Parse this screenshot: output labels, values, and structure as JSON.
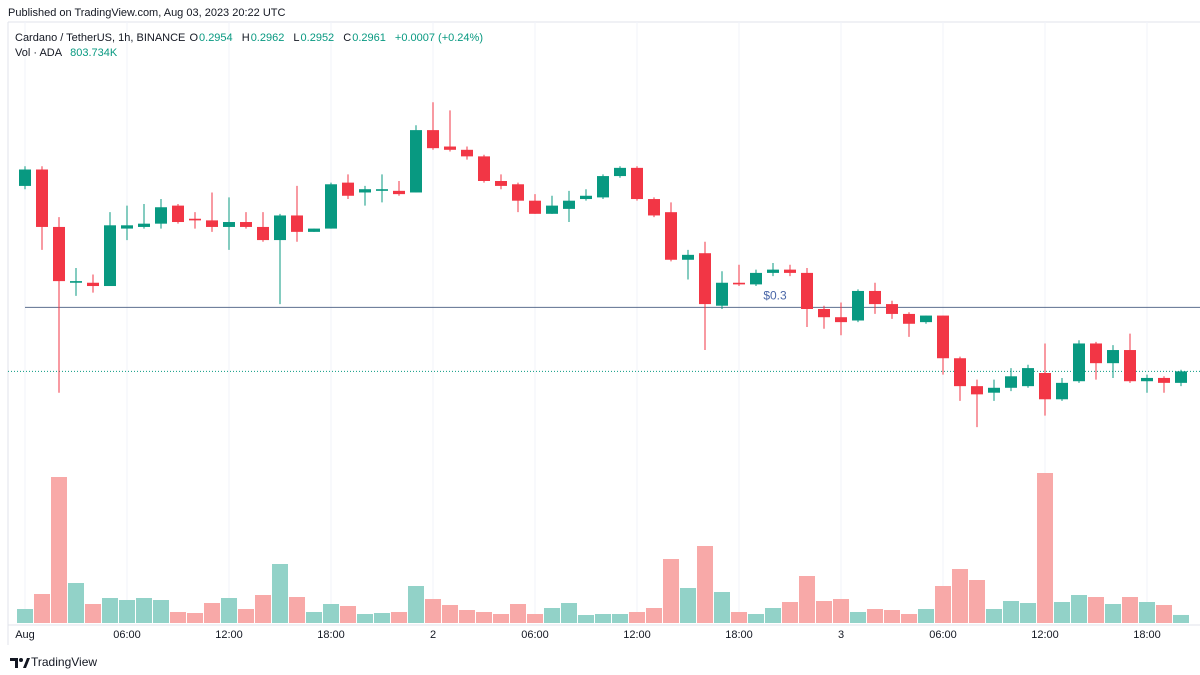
{
  "published": "Published on TradingView.com, Aug 03, 2023 20:22 UTC",
  "footer": "TradingView",
  "chart_data": {
    "type": "candlestick",
    "title": "Cardano / TetherUS, 1h, BINANCE",
    "ohlc_letters": [
      "O",
      "H",
      "L",
      "C"
    ],
    "change": "+0.0007 (+0.24%)",
    "up_color": "#089981",
    "down_color": "#f23645",
    "categories": [
      "Aug",
      null,
      null,
      null,
      null,
      null,
      "06:00",
      null,
      null,
      null,
      null,
      null,
      "12:00",
      null,
      null,
      null,
      null,
      null,
      "18:00",
      null,
      null,
      null,
      null,
      null,
      "2",
      null,
      null,
      null,
      null,
      null,
      "06:00",
      null,
      null,
      null,
      null,
      null,
      "12:00",
      null,
      null,
      null,
      null,
      null,
      "18:00",
      null,
      null,
      null,
      null,
      null,
      "3",
      null,
      null,
      null,
      null,
      null,
      "06:00",
      null,
      null,
      null,
      null,
      null,
      "12:00",
      null,
      null,
      null,
      null,
      null,
      "18:00",
      null,
      null
    ],
    "open": [
      0.3074,
      0.3084,
      0.3049,
      0.3015,
      0.3015,
      0.3013,
      0.3048,
      0.3049,
      0.3051,
      0.3062,
      0.3054,
      0.3053,
      0.3049,
      0.3052,
      0.3049,
      0.3041,
      0.3056,
      0.3046,
      0.3048,
      0.3076,
      0.307,
      0.3071,
      0.3071,
      0.307,
      0.3108,
      0.3098,
      0.3096,
      0.3092,
      0.3077,
      0.3075,
      0.3065,
      0.3057,
      0.306,
      0.3066,
      0.3067,
      0.308,
      0.3085,
      0.3066,
      0.3058,
      0.3029,
      0.3033,
      0.3001,
      0.3015,
      0.3014,
      0.3021,
      0.3023,
      0.3021,
      0.2999,
      0.2994,
      0.2992,
      0.301,
      0.3002,
      0.2996,
      0.2991,
      0.2995,
      0.2969,
      0.2952,
      0.2948,
      0.2951,
      0.2952,
      0.296,
      0.2944,
      0.2955,
      0.2978,
      0.2966,
      0.2974,
      0.2955,
      0.2957,
      0.2954
    ],
    "high": [
      0.3086,
      0.3086,
      0.3055,
      0.3024,
      0.302,
      0.3058,
      0.3062,
      0.3063,
      0.3066,
      0.3063,
      0.3058,
      0.307,
      0.3067,
      0.3058,
      0.3058,
      0.3057,
      0.3074,
      0.3048,
      0.3076,
      0.3081,
      0.3074,
      0.3081,
      0.3077,
      0.3111,
      0.3125,
      0.312,
      0.3098,
      0.3093,
      0.3081,
      0.3076,
      0.3069,
      0.3068,
      0.3071,
      0.3072,
      0.3081,
      0.3086,
      0.3086,
      0.3067,
      0.3064,
      0.3035,
      0.304,
      0.3022,
      0.3026,
      0.3023,
      0.3027,
      0.3026,
      0.3024,
      0.3001,
      0.3003,
      0.3011,
      0.3015,
      0.3004,
      0.2997,
      0.2995,
      0.2995,
      0.297,
      0.2956,
      0.2956,
      0.2963,
      0.2965,
      0.2978,
      0.2957,
      0.298,
      0.2979,
      0.2977,
      0.2984,
      0.2959,
      0.2958,
      0.2962
    ],
    "low": [
      0.3072,
      0.3035,
      0.2948,
      0.3007,
      0.3009,
      0.3013,
      0.3041,
      0.3048,
      0.3048,
      0.3051,
      0.3048,
      0.3046,
      0.3035,
      0.3048,
      0.304,
      0.3002,
      0.304,
      0.3046,
      0.3048,
      0.3066,
      0.3062,
      0.3064,
      0.3068,
      0.307,
      0.3096,
      0.3095,
      0.309,
      0.3076,
      0.3072,
      0.3058,
      0.3057,
      0.3057,
      0.3052,
      0.3065,
      0.3066,
      0.3079,
      0.3065,
      0.3055,
      0.3028,
      0.3017,
      0.2974,
      0.2999,
      0.3013,
      0.3013,
      0.3019,
      0.3019,
      0.2988,
      0.2987,
      0.2983,
      0.2991,
      0.2996,
      0.2993,
      0.2982,
      0.299,
      0.2959,
      0.2943,
      0.2927,
      0.2943,
      0.2949,
      0.2951,
      0.2934,
      0.2943,
      0.2954,
      0.2956,
      0.2957,
      0.2954,
      0.2948,
      0.2948,
      0.2952
    ],
    "close": [
      0.3084,
      0.3049,
      0.3016,
      0.3016,
      0.3013,
      0.305,
      0.305,
      0.3051,
      0.3061,
      0.3052,
      0.3053,
      0.3049,
      0.3052,
      0.3049,
      0.3041,
      0.3056,
      0.3046,
      0.3048,
      0.3075,
      0.3068,
      0.3072,
      0.3072,
      0.3069,
      0.3108,
      0.3097,
      0.3096,
      0.3092,
      0.3077,
      0.3074,
      0.3065,
      0.3057,
      0.3062,
      0.3065,
      0.3068,
      0.308,
      0.3085,
      0.3066,
      0.3056,
      0.3029,
      0.3032,
      0.3002,
      0.3015,
      0.3014,
      0.3021,
      0.3023,
      0.3021,
      0.2999,
      0.2994,
      0.2991,
      0.301,
      0.3002,
      0.2996,
      0.299,
      0.2995,
      0.2969,
      0.2952,
      0.2947,
      0.2951,
      0.2958,
      0.2963,
      0.2944,
      0.2954,
      0.2978,
      0.2966,
      0.2974,
      0.2955,
      0.2957,
      0.2954,
      0.2961
    ],
    "ylim": [
      0.2907,
      0.3169
    ],
    "reference_line": {
      "value": 0.3,
      "label": "$0.3"
    },
    "volume": {
      "name": "Vol · ADA",
      "up_color": "#92d2c8",
      "down_color": "#f8a9a8",
      "values": [
        1400000,
        2900000,
        14600000,
        4000000,
        1900000,
        2500000,
        2300000,
        2500000,
        2300000,
        1100000,
        1000000,
        2000000,
        2500000,
        1400000,
        2800000,
        5900000,
        2600000,
        1100000,
        1900000,
        1700000,
        900000,
        1000000,
        1100000,
        3700000,
        2400000,
        1800000,
        1300000,
        1100000,
        900000,
        1900000,
        900000,
        1500000,
        2000000,
        800000,
        900000,
        900000,
        1100000,
        1500000,
        6400000,
        3500000,
        7700000,
        3100000,
        1100000,
        900000,
        1500000,
        2100000,
        4700000,
        2200000,
        2400000,
        1100000,
        1400000,
        1300000,
        900000,
        1400000,
        3700000,
        5400000,
        4300000,
        1400000,
        2200000,
        2000000,
        15000000,
        2100000,
        2800000,
        2600000,
        1900000,
        2600000,
        2100000,
        1800000,
        803734
      ],
      "value_labels": [
        null,
        null,
        null,
        null,
        null,
        null,
        null,
        null,
        null,
        null,
        null,
        null,
        null,
        null,
        null,
        null,
        null,
        null,
        null,
        null,
        null,
        null,
        null,
        null,
        null,
        null,
        null,
        null,
        null,
        null,
        null,
        null,
        null,
        null,
        null,
        null,
        null,
        null,
        null,
        null,
        null,
        null,
        null,
        null,
        null,
        null,
        null,
        null,
        null,
        null,
        null,
        null,
        null,
        null,
        null,
        null,
        null,
        null,
        null,
        null,
        null,
        null,
        null,
        null,
        null,
        null,
        null,
        null,
        "803.734K"
      ]
    },
    "vlim": [
      0,
      18000000
    ]
  }
}
